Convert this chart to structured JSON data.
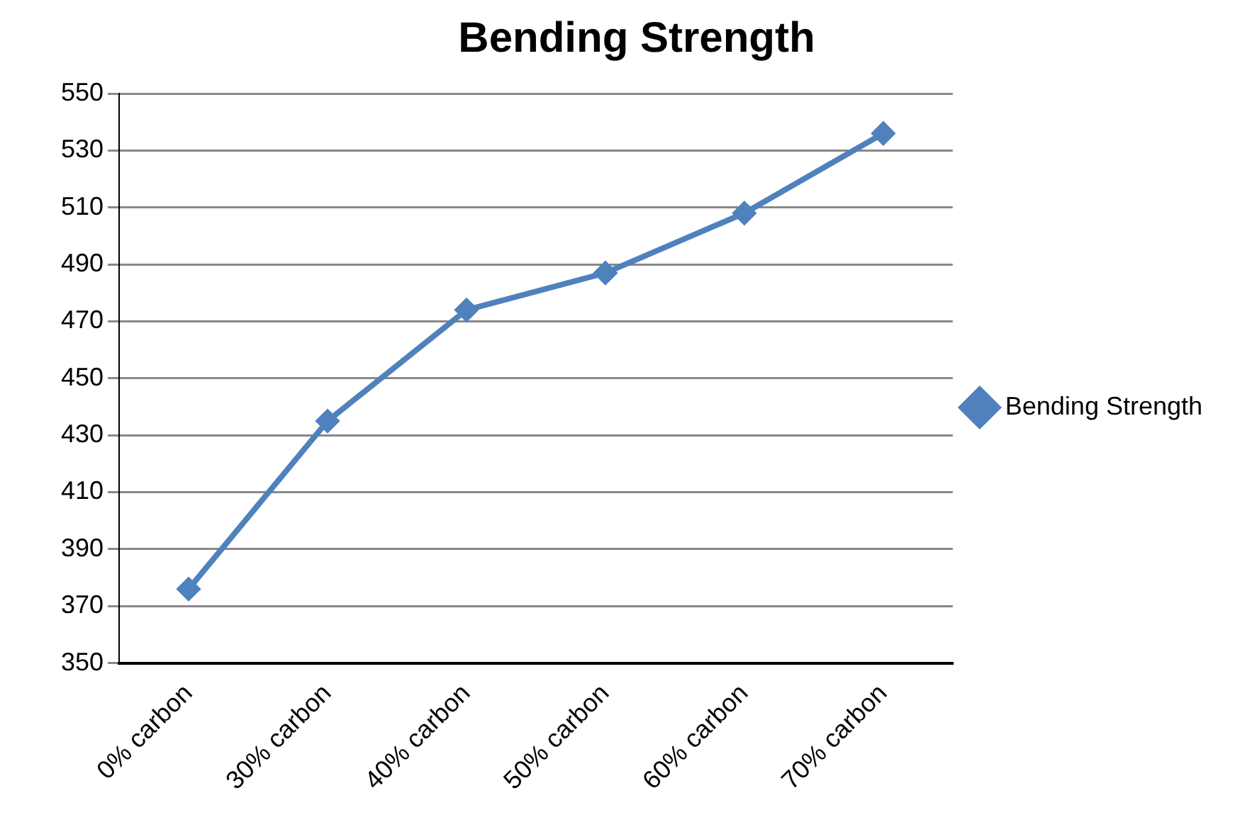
{
  "chart_data": {
    "type": "line",
    "title": "Bending Strength",
    "categories": [
      "0% carbon",
      "30% carbon",
      "40% carbon",
      "50% carbon",
      "60% carbon",
      "70% carbon"
    ],
    "series": [
      {
        "name": "Bending Strength",
        "color": "#4f81bd",
        "values": [
          376,
          435,
          474,
          487,
          508,
          536
        ]
      }
    ],
    "ylim": [
      350,
      550
    ],
    "yticks": [
      350,
      370,
      390,
      410,
      430,
      450,
      470,
      490,
      510,
      530,
      550
    ],
    "grid": "y",
    "legend": "right",
    "marker": "diamond",
    "line_style": "solid"
  }
}
